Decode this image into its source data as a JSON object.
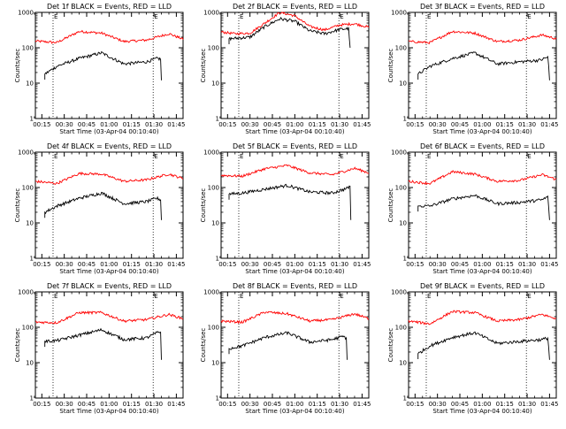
{
  "chart_data": {
    "type": "line",
    "ylabel": "Counts/sec",
    "xlabel": "Start Time (03-Apr-04 00:10:40)",
    "yscale": "log",
    "ylim": [
      1,
      1000
    ],
    "xlim_minutes": [
      10.67,
      109.5
    ],
    "x_ticks": [
      "00:15",
      "00:30",
      "00:45",
      "01:00",
      "01:15",
      "01:30",
      "01:45"
    ],
    "x_tick_minutes": [
      15,
      30,
      45,
      60,
      75,
      90,
      105
    ],
    "y_ticks": [
      "1",
      "10",
      "100",
      "1000"
    ],
    "y_tick_values": [
      1,
      10,
      100,
      1000
    ],
    "marker_label": "E",
    "series_colors": {
      "events": "#000000",
      "lld": "#ff0000"
    },
    "panels": [
      {
        "title": "Det 1f BLACK = Events, RED = LLD",
        "markers_minutes": [
          22.5,
          89.5
        ],
        "lld_minutes": [
          10.67,
          25,
          40,
          55,
          70,
          85,
          100,
          109.5
        ],
        "lld_values": [
          155,
          140,
          290,
          260,
          150,
          165,
          250,
          175
        ],
        "events_minutes": [
          17,
          25,
          40,
          55,
          70,
          85,
          92,
          94.5,
          95
        ],
        "events_values": [
          18,
          30,
          50,
          72,
          35,
          40,
          50,
          48,
          12
        ]
      },
      {
        "title": "Det 2f BLACK = Events, RED = LLD",
        "markers_minutes": [
          22.5,
          89.5
        ],
        "lld_minutes": [
          10.67,
          20,
          30,
          40,
          50,
          60,
          70,
          80,
          90,
          100,
          109.5
        ],
        "lld_values": [
          280,
          250,
          260,
          500,
          1000,
          800,
          400,
          320,
          440,
          480,
          380
        ],
        "events_minutes": [
          16,
          20,
          30,
          40,
          50,
          60,
          70,
          80,
          90,
          96,
          97
        ],
        "events_values": [
          180,
          185,
          200,
          400,
          660,
          560,
          300,
          250,
          330,
          350,
          100
        ]
      },
      {
        "title": "Det 3f BLACK = Events, RED = LLD",
        "markers_minutes": [
          22.5,
          89.5
        ],
        "lld_minutes": [
          10.67,
          25,
          40,
          55,
          70,
          85,
          100,
          109.5
        ],
        "lld_values": [
          150,
          140,
          290,
          260,
          150,
          165,
          230,
          180
        ],
        "events_minutes": [
          17,
          25,
          40,
          55,
          70,
          85,
          99,
          104,
          105
        ],
        "events_values": [
          18,
          30,
          50,
          72,
          35,
          40,
          45,
          55,
          12
        ]
      },
      {
        "title": "Det 4f BLACK = Events, RED = LLD",
        "markers_minutes": [
          22.5,
          89.5
        ],
        "lld_minutes": [
          10.67,
          25,
          40,
          55,
          70,
          85,
          100,
          109.5
        ],
        "lld_values": [
          150,
          130,
          250,
          240,
          150,
          165,
          240,
          180
        ],
        "events_minutes": [
          17,
          25,
          40,
          55,
          70,
          85,
          92,
          94.5,
          95
        ],
        "events_values": [
          20,
          30,
          50,
          70,
          35,
          40,
          50,
          45,
          12
        ]
      },
      {
        "title": "Det 5f BLACK = Events, RED = LLD",
        "markers_minutes": [
          22.5,
          89.5
        ],
        "lld_minutes": [
          10.67,
          25,
          40,
          55,
          70,
          85,
          100,
          109.5
        ],
        "lld_values": [
          220,
          210,
          340,
          420,
          260,
          230,
          350,
          260
        ],
        "events_minutes": [
          16,
          25,
          40,
          55,
          70,
          85,
          95,
          97,
          97.5
        ],
        "events_values": [
          65,
          70,
          90,
          115,
          75,
          70,
          95,
          110,
          12
        ]
      },
      {
        "title": "Det 6f BLACK = Events, RED = LLD",
        "markers_minutes": [
          22.5,
          89.5
        ],
        "lld_minutes": [
          10.67,
          25,
          40,
          55,
          70,
          85,
          100,
          109.5
        ],
        "lld_values": [
          150,
          130,
          280,
          240,
          150,
          160,
          230,
          170
        ],
        "events_minutes": [
          17,
          25,
          40,
          55,
          70,
          85,
          100,
          104,
          105
        ],
        "events_values": [
          30,
          30,
          48,
          60,
          35,
          38,
          45,
          55,
          12
        ]
      },
      {
        "title": "Det 7f BLACK = Events, RED = LLD",
        "markers_minutes": [
          22.5,
          89.5
        ],
        "lld_minutes": [
          10.67,
          25,
          40,
          55,
          70,
          85,
          100,
          109.5
        ],
        "lld_values": [
          140,
          135,
          260,
          260,
          150,
          165,
          230,
          175
        ],
        "events_minutes": [
          17,
          25,
          40,
          55,
          70,
          85,
          92,
          94.5,
          95
        ],
        "events_values": [
          40,
          42,
          60,
          85,
          45,
          50,
          70,
          75,
          12
        ]
      },
      {
        "title": "Det 8f BLACK = Events, RED = LLD",
        "markers_minutes": [
          22.5,
          89.5
        ],
        "lld_minutes": [
          10.67,
          25,
          40,
          55,
          70,
          85,
          100,
          109.5
        ],
        "lld_values": [
          150,
          140,
          270,
          240,
          150,
          165,
          240,
          175
        ],
        "events_minutes": [
          16,
          25,
          40,
          55,
          70,
          85,
          92,
          94.5,
          95
        ],
        "events_values": [
          25,
          30,
          52,
          70,
          38,
          45,
          55,
          50,
          12
        ]
      },
      {
        "title": "Det 9f BLACK = Events, RED = LLD",
        "markers_minutes": [
          22.5,
          89.5
        ],
        "lld_minutes": [
          10.67,
          25,
          40,
          55,
          70,
          85,
          100,
          109.5
        ],
        "lld_values": [
          150,
          125,
          280,
          260,
          150,
          165,
          230,
          175
        ],
        "events_minutes": [
          17,
          25,
          40,
          55,
          70,
          85,
          100,
          104,
          105
        ],
        "events_values": [
          18,
          30,
          52,
          70,
          35,
          40,
          45,
          50,
          12
        ]
      }
    ]
  }
}
